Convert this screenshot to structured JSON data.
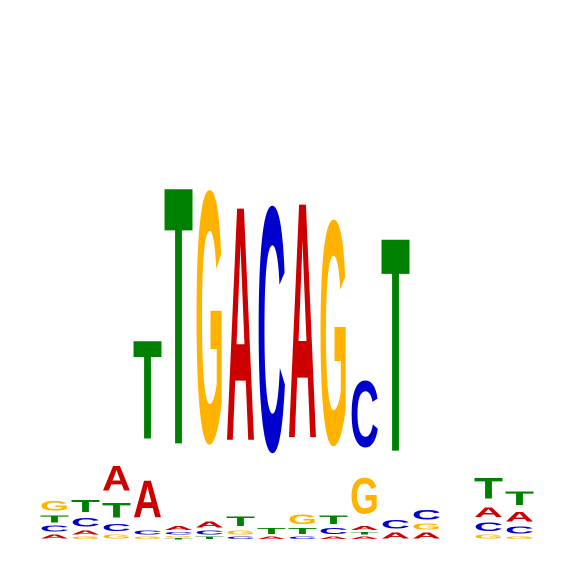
{
  "colors": {
    "A": "#cc0000",
    "C": "#0000cc",
    "G": "#ffb300",
    "T": "#008000"
  },
  "logo": {
    "max_bits": 2.0,
    "positions": [
      {
        "stack": [
          [
            "A",
            0.03
          ],
          [
            "C",
            0.04
          ],
          [
            "T",
            0.05
          ],
          [
            "G",
            0.07
          ]
        ]
      },
      {
        "stack": [
          [
            "G",
            0.02
          ],
          [
            "A",
            0.03
          ],
          [
            "C",
            0.06
          ],
          [
            "T",
            0.09
          ]
        ]
      },
      {
        "stack": [
          [
            "G",
            0.03
          ],
          [
            "C",
            0.05
          ],
          [
            "T",
            0.11
          ],
          [
            "A",
            0.18
          ]
        ]
      },
      {
        "stack": [
          [
            "G",
            0.02
          ],
          [
            "C",
            0.03
          ],
          [
            "A",
            0.27
          ],
          [
            "T",
            0.72
          ]
        ]
      },
      {
        "stack": [
          [
            "T",
            0.01
          ],
          [
            "G",
            0.01
          ],
          [
            "C",
            0.02
          ],
          [
            "A",
            0.03
          ],
          [
            "T",
            1.88
          ]
        ]
      },
      {
        "stack": [
          [
            "T",
            0.02
          ],
          [
            "C",
            0.03
          ],
          [
            "A",
            0.04
          ],
          [
            "G",
            1.83
          ]
        ]
      },
      {
        "stack": [
          [
            "C",
            0.02
          ],
          [
            "G",
            0.03
          ],
          [
            "T",
            0.07
          ],
          [
            "A",
            1.71
          ]
        ]
      },
      {
        "stack": [
          [
            "A",
            0.02
          ],
          [
            "T",
            0.04
          ],
          [
            "C",
            1.78
          ]
        ]
      },
      {
        "stack": [
          [
            "C",
            0.02
          ],
          [
            "T",
            0.04
          ],
          [
            "G",
            0.07
          ],
          [
            "A",
            1.72
          ]
        ]
      },
      {
        "stack": [
          [
            "A",
            0.02
          ],
          [
            "C",
            0.04
          ],
          [
            "T",
            0.06
          ],
          [
            "G",
            1.63
          ]
        ]
      },
      {
        "stack": [
          [
            "A",
            0.02
          ],
          [
            "T",
            0.02
          ],
          [
            "A",
            0.03
          ],
          [
            "G",
            0.26
          ],
          [
            "C",
            0.48
          ]
        ]
      },
      {
        "stack": [
          [
            "A",
            0.04
          ],
          [
            "C",
            0.06
          ],
          [
            "T",
            1.56
          ]
        ]
      },
      {
        "stack": [
          [
            "A",
            0.04
          ],
          [
            "G",
            0.04
          ],
          [
            "C",
            0.07
          ]
        ]
      },
      {
        "stack": [
          [
            "G",
            0.0
          ]
        ]
      },
      {
        "stack": [
          [
            "G",
            0.03
          ],
          [
            "C",
            0.06
          ],
          [
            "A",
            0.07
          ],
          [
            "T",
            0.15
          ]
        ]
      },
      {
        "stack": [
          [
            "G",
            0.02
          ],
          [
            "C",
            0.05
          ],
          [
            "A",
            0.07
          ],
          [
            "T",
            0.1
          ]
        ]
      }
    ]
  }
}
